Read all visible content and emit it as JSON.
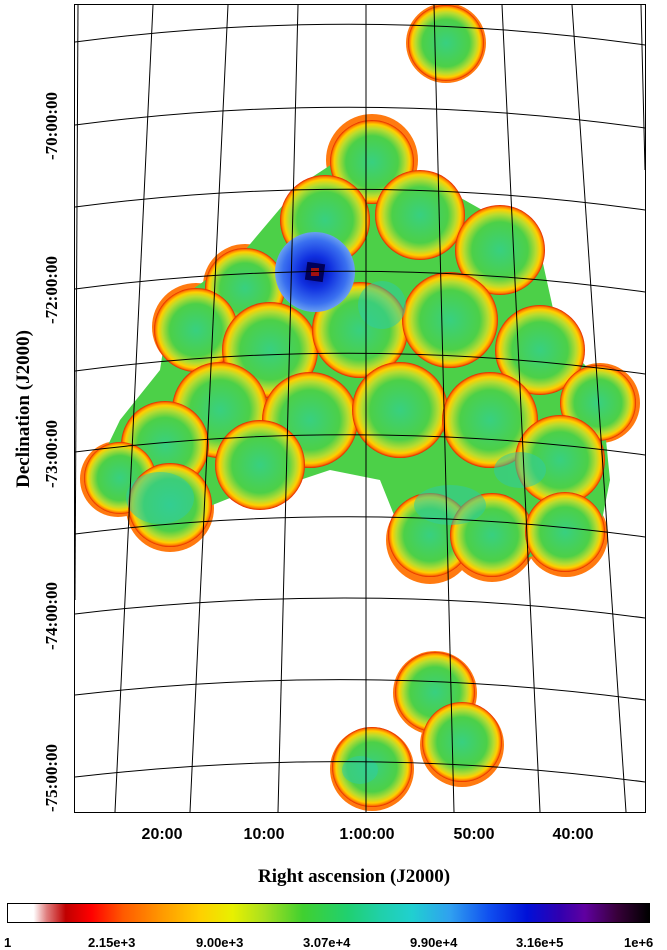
{
  "chart_data": {
    "type": "heatmap",
    "xlabel": "Right ascension (J2000)",
    "ylabel": "Declination (J2000)",
    "x_ticks": [
      "20:00",
      "10:00",
      "1:00:00",
      "50:00",
      "40:00"
    ],
    "y_ticks": [
      "-70:00:00",
      "-72:00:00",
      "-73:00:00",
      "-74:00:00",
      "-75:00:00"
    ],
    "colorbar_ticks": [
      "1",
      "2.15e+3",
      "9.00e+3",
      "3.07e+4",
      "9.90e+4",
      "3.16e+5",
      "1e+6"
    ],
    "colormap": [
      "#ffffff",
      "#c00000",
      "#ff0000",
      "#ff9900",
      "#e8f000",
      "#40d030",
      "#20d0a8",
      "#1050f0",
      "#0010d8",
      "#6000a0",
      "#000000"
    ],
    "grid": "on"
  }
}
